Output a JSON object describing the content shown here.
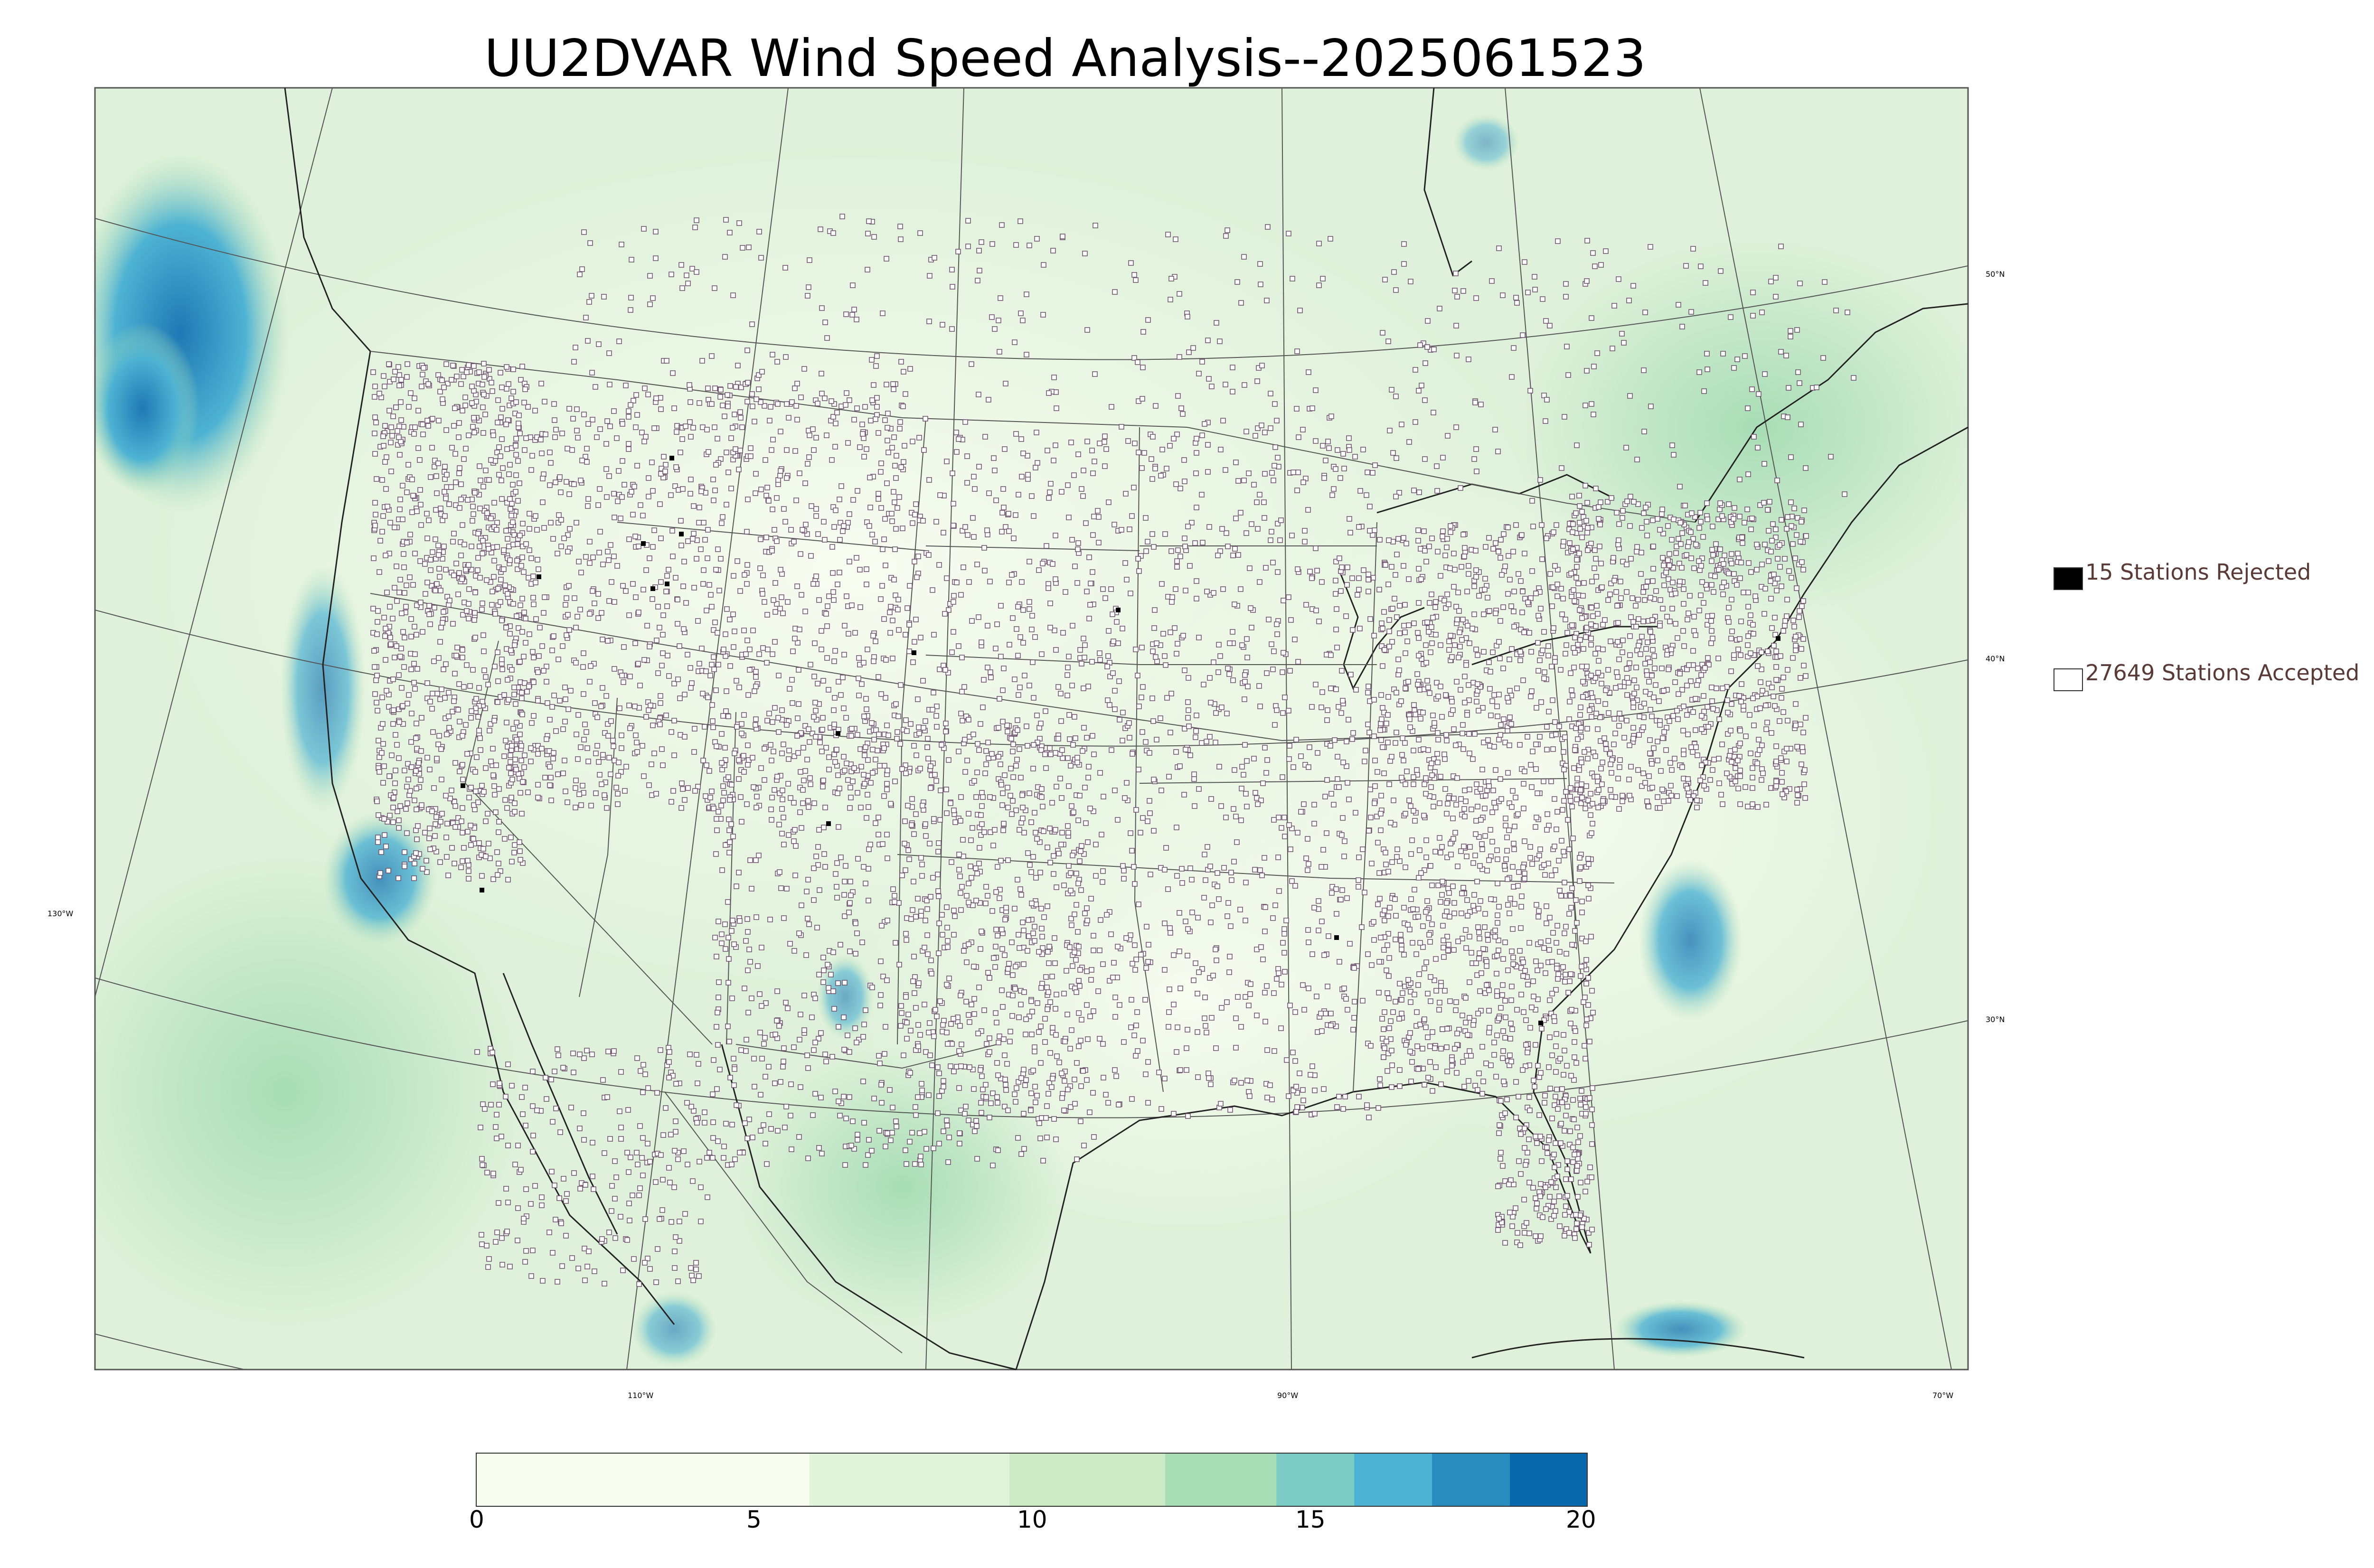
{
  "title": "UU2DVAR Wind Speed Analysis--2025061523",
  "legend": {
    "rejected_label": "15 Stations Rejected",
    "accepted_label": "27649 Stations Accepted",
    "rejected_color": "#000000",
    "accepted_color": "#ffffff"
  },
  "graticule": {
    "lat_labels": [
      "50°N",
      "40°N",
      "30°N"
    ],
    "lon_labels": [
      "130°W",
      "110°W",
      "90°W",
      "70°W"
    ]
  },
  "colorbar": {
    "ticks": [
      "0",
      "5",
      "10",
      "15",
      "20"
    ],
    "range": [
      0,
      20
    ],
    "colors": [
      "#f7fcf0",
      "#e0f3db",
      "#ccebc5",
      "#a8ddb5",
      "#7bccc4",
      "#4eb3d3",
      "#2b8cbe",
      "#0868ac"
    ]
  },
  "field_colors": {
    "background": "#e4f4df",
    "light": "#f2faee",
    "medium": "#c9e9c5",
    "strong": "#4eb3d3",
    "very_strong": "#1f78b4"
  }
}
